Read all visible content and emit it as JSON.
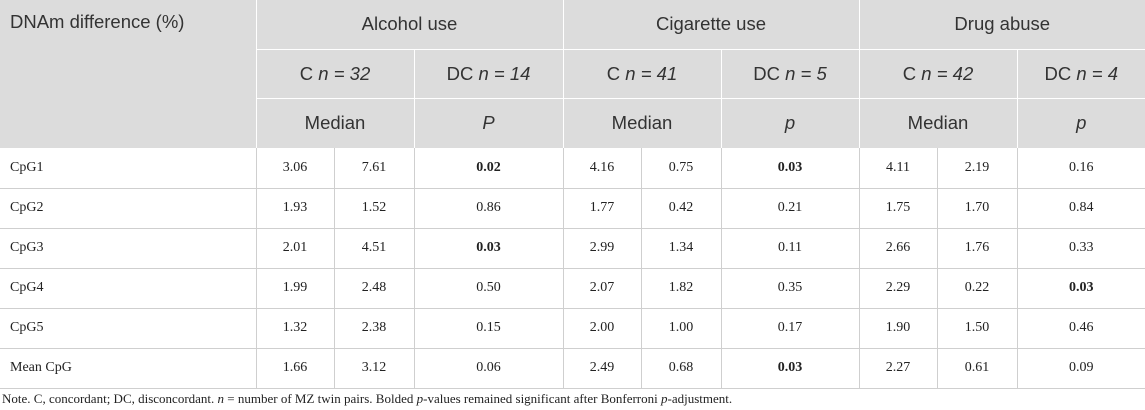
{
  "header": {
    "corner": "DNAm difference (%)",
    "groups": [
      "Alcohol use",
      "Cigarette use",
      "Drug abuse"
    ],
    "subgroups": [
      {
        "c_label": "C",
        "c_n": "n = 32",
        "dc_label": "DC",
        "dc_n": "n = 14"
      },
      {
        "c_label": "C",
        "c_n": "n = 41",
        "dc_label": "DC",
        "dc_n": "n = 5"
      },
      {
        "c_label": "C",
        "c_n": "n = 42",
        "dc_label": "DC",
        "dc_n": "n = 4"
      }
    ],
    "stat_labels": [
      "Median",
      "P",
      "Median",
      "p",
      "Median",
      "p"
    ]
  },
  "rows": [
    {
      "label": "CpG1",
      "values": [
        "3.06",
        "7.61",
        "0.02",
        "4.16",
        "0.75",
        "0.03",
        "4.11",
        "2.19",
        "0.16"
      ],
      "bold": [
        false,
        false,
        true,
        false,
        false,
        true,
        false,
        false,
        false
      ]
    },
    {
      "label": "CpG2",
      "values": [
        "1.93",
        "1.52",
        "0.86",
        "1.77",
        "0.42",
        "0.21",
        "1.75",
        "1.70",
        "0.84"
      ],
      "bold": [
        false,
        false,
        false,
        false,
        false,
        false,
        false,
        false,
        false
      ]
    },
    {
      "label": "CpG3",
      "values": [
        "2.01",
        "4.51",
        "0.03",
        "2.99",
        "1.34",
        "0.11",
        "2.66",
        "1.76",
        "0.33"
      ],
      "bold": [
        false,
        false,
        true,
        false,
        false,
        false,
        false,
        false,
        false
      ]
    },
    {
      "label": "CpG4",
      "values": [
        "1.99",
        "2.48",
        "0.50",
        "2.07",
        "1.82",
        "0.35",
        "2.29",
        "0.22",
        "0.03"
      ],
      "bold": [
        false,
        false,
        false,
        false,
        false,
        false,
        false,
        false,
        true
      ]
    },
    {
      "label": "CpG5",
      "values": [
        "1.32",
        "2.38",
        "0.15",
        "2.00",
        "1.00",
        "0.17",
        "1.90",
        "1.50",
        "0.46"
      ],
      "bold": [
        false,
        false,
        false,
        false,
        false,
        false,
        false,
        false,
        false
      ]
    },
    {
      "label": "Mean CpG",
      "values": [
        "1.66",
        "3.12",
        "0.06",
        "2.49",
        "0.68",
        "0.03",
        "2.27",
        "0.61",
        "0.09"
      ],
      "bold": [
        false,
        false,
        false,
        false,
        false,
        true,
        false,
        false,
        false
      ]
    }
  ],
  "note": {
    "p1": "Note. C, concordant; DC, disconcordant. ",
    "n_sym": "n",
    "p2": " = number of MZ twin pairs. Bolded ",
    "p_sym1": "p",
    "p3": "-values remained significant after Bonferroni ",
    "p_sym2": "p",
    "p4": "-adjustment."
  }
}
